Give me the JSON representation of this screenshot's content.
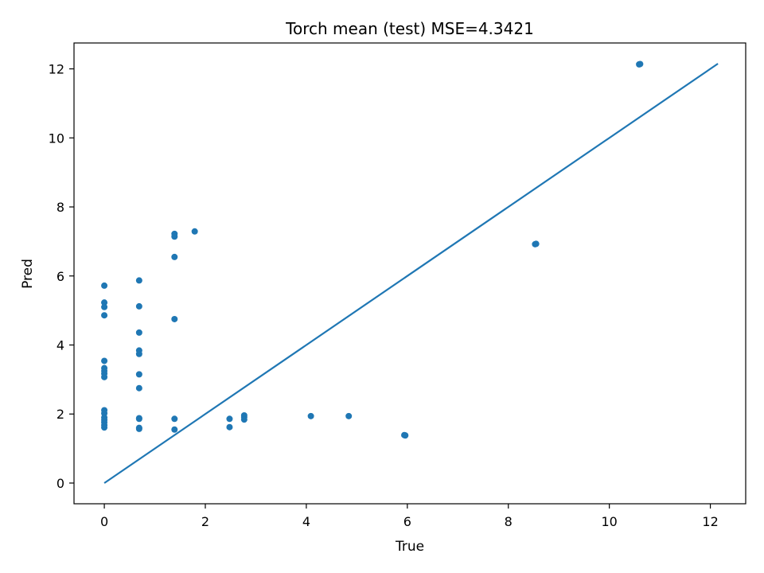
{
  "chart_data": {
    "type": "scatter",
    "title": "Torch mean (test) MSE=4.3421",
    "xlabel": "True",
    "ylabel": "Pred",
    "xlim": [
      -0.6,
      12.7
    ],
    "ylim": [
      -0.6,
      12.75
    ],
    "xticks": [
      0,
      2,
      4,
      6,
      8,
      10,
      12
    ],
    "yticks": [
      0,
      2,
      4,
      6,
      8,
      10,
      12
    ],
    "grid": false,
    "point_color": "#1f77b4",
    "line_color": "#1f77b4",
    "reference_line": {
      "x": [
        0,
        12.15
      ],
      "y": [
        0,
        12.15
      ]
    },
    "points": [
      {
        "x": 0,
        "y": 5.72
      },
      {
        "x": 0,
        "y": 5.23
      },
      {
        "x": 0,
        "y": 5.1
      },
      {
        "x": 0,
        "y": 4.86
      },
      {
        "x": 0,
        "y": 3.54
      },
      {
        "x": 0,
        "y": 3.33
      },
      {
        "x": 0,
        "y": 3.25
      },
      {
        "x": 0,
        "y": 3.17
      },
      {
        "x": 0,
        "y": 3.07
      },
      {
        "x": 0,
        "y": 2.11
      },
      {
        "x": 0,
        "y": 2.02
      },
      {
        "x": 0,
        "y": 1.9
      },
      {
        "x": 0,
        "y": 1.83
      },
      {
        "x": 0,
        "y": 1.76
      },
      {
        "x": 0,
        "y": 1.68
      },
      {
        "x": 0,
        "y": 1.61
      },
      {
        "x": 0.69,
        "y": 5.87
      },
      {
        "x": 0.69,
        "y": 5.12
      },
      {
        "x": 0.69,
        "y": 4.36
      },
      {
        "x": 0.69,
        "y": 3.84
      },
      {
        "x": 0.69,
        "y": 3.74
      },
      {
        "x": 0.69,
        "y": 3.15
      },
      {
        "x": 0.69,
        "y": 2.75
      },
      {
        "x": 0.69,
        "y": 1.88
      },
      {
        "x": 0.69,
        "y": 1.86
      },
      {
        "x": 0.69,
        "y": 1.6
      },
      {
        "x": 0.69,
        "y": 1.57
      },
      {
        "x": 1.39,
        "y": 7.22
      },
      {
        "x": 1.39,
        "y": 7.14
      },
      {
        "x": 1.39,
        "y": 6.55
      },
      {
        "x": 1.39,
        "y": 4.75
      },
      {
        "x": 1.39,
        "y": 1.86
      },
      {
        "x": 1.39,
        "y": 1.55
      },
      {
        "x": 1.79,
        "y": 7.29
      },
      {
        "x": 2.48,
        "y": 1.86
      },
      {
        "x": 2.48,
        "y": 1.62
      },
      {
        "x": 2.77,
        "y": 1.96
      },
      {
        "x": 2.77,
        "y": 1.91
      },
      {
        "x": 2.77,
        "y": 1.84
      },
      {
        "x": 4.09,
        "y": 1.94
      },
      {
        "x": 4.84,
        "y": 1.94
      },
      {
        "x": 5.94,
        "y": 1.39
      },
      {
        "x": 5.96,
        "y": 1.38
      },
      {
        "x": 8.53,
        "y": 6.92
      },
      {
        "x": 8.55,
        "y": 6.93
      },
      {
        "x": 10.59,
        "y": 12.13
      },
      {
        "x": 10.61,
        "y": 12.14
      }
    ]
  }
}
